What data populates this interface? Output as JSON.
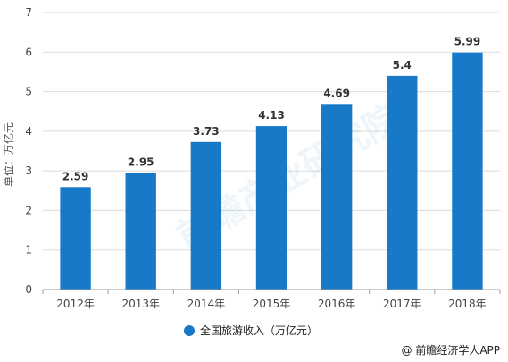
{
  "chart_data": {
    "type": "bar",
    "categories": [
      "2012年",
      "2013年",
      "2014年",
      "2015年",
      "2016年",
      "2017年",
      "2018年"
    ],
    "series": [
      {
        "name": "全国旅游收入（万亿元）",
        "values": [
          2.59,
          2.95,
          3.73,
          4.13,
          4.69,
          5.4,
          5.99
        ]
      }
    ],
    "data_labels": [
      "2.59",
      "2.95",
      "3.73",
      "4.13",
      "4.69",
      "5.4",
      "5.99"
    ],
    "ylabel": "单位：万亿元",
    "xlabel": "",
    "ylim": [
      0,
      7
    ],
    "yticks": [
      "0",
      "1",
      "2",
      "3",
      "4",
      "5",
      "6",
      "7"
    ],
    "grid": true,
    "legend_position": "bottom",
    "colors": {
      "bar": "#1879c8",
      "grid": "#dcdcdc",
      "axis": "#9a9a9a"
    }
  },
  "watermark": "前瞻产业研究院",
  "credit": "@ 前瞻经济学人APP"
}
